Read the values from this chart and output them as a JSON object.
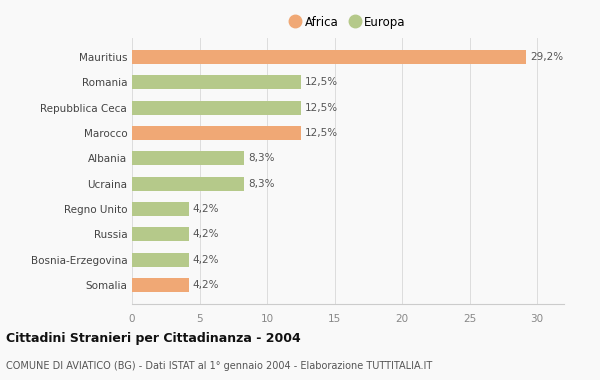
{
  "categories": [
    "Somalia",
    "Bosnia-Erzegovina",
    "Russia",
    "Regno Unito",
    "Ucraina",
    "Albania",
    "Marocco",
    "Repubblica Ceca",
    "Romania",
    "Mauritius"
  ],
  "values": [
    4.2,
    4.2,
    4.2,
    4.2,
    8.3,
    8.3,
    12.5,
    12.5,
    12.5,
    29.2
  ],
  "labels": [
    "4,2%",
    "4,2%",
    "4,2%",
    "4,2%",
    "8,3%",
    "8,3%",
    "12,5%",
    "12,5%",
    "12,5%",
    "29,2%"
  ],
  "colors": [
    "#f0a875",
    "#b5c98a",
    "#b5c98a",
    "#b5c98a",
    "#b5c98a",
    "#b5c98a",
    "#f0a875",
    "#b5c98a",
    "#b5c98a",
    "#f0a875"
  ],
  "africa_color": "#f0a875",
  "europa_color": "#b5c98a",
  "title": "Cittadini Stranieri per Cittadinanza - 2004",
  "subtitle": "COMUNE DI AVIATICO (BG) - Dati ISTAT al 1° gennaio 2004 - Elaborazione TUTTITALIA.IT",
  "xlim": [
    0,
    32
  ],
  "xticks": [
    0,
    5,
    10,
    15,
    20,
    25,
    30
  ],
  "background_color": "#f9f9f9",
  "legend_africa": "Africa",
  "legend_europa": "Europa",
  "bar_height": 0.55
}
